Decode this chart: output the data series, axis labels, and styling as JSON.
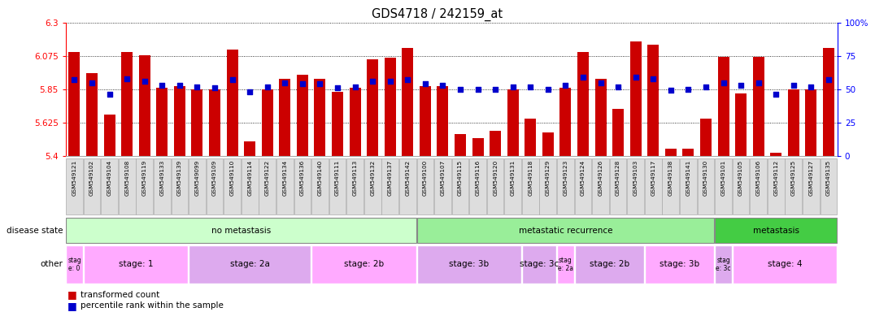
{
  "title": "GDS4718 / 242159_at",
  "samples": [
    "GSM549121",
    "GSM549102",
    "GSM549104",
    "GSM549108",
    "GSM549119",
    "GSM549133",
    "GSM549139",
    "GSM549099",
    "GSM549109",
    "GSM549110",
    "GSM549114",
    "GSM549122",
    "GSM549134",
    "GSM549136",
    "GSM549140",
    "GSM549111",
    "GSM549113",
    "GSM549132",
    "GSM549137",
    "GSM549142",
    "GSM549100",
    "GSM549107",
    "GSM549115",
    "GSM549116",
    "GSM549120",
    "GSM549131",
    "GSM549118",
    "GSM549129",
    "GSM549123",
    "GSM549124",
    "GSM549126",
    "GSM549128",
    "GSM549103",
    "GSM549117",
    "GSM549138",
    "GSM549141",
    "GSM549130",
    "GSM549101",
    "GSM549105",
    "GSM549106",
    "GSM549112",
    "GSM549125",
    "GSM549127",
    "GSM549135"
  ],
  "bar_values": [
    6.1,
    5.96,
    5.68,
    6.1,
    6.08,
    5.86,
    5.87,
    5.85,
    5.85,
    6.12,
    5.5,
    5.85,
    5.92,
    5.95,
    5.92,
    5.83,
    5.86,
    6.05,
    6.06,
    6.13,
    5.87,
    5.87,
    5.55,
    5.52,
    5.57,
    5.85,
    5.65,
    5.56,
    5.86,
    6.1,
    5.92,
    5.72,
    6.17,
    6.15,
    5.45,
    5.45,
    5.65,
    6.07,
    5.82,
    6.07,
    5.42,
    5.85,
    5.85,
    6.13
  ],
  "percentile_values": [
    57,
    55,
    46,
    58,
    56,
    53,
    53,
    52,
    51,
    57,
    48,
    52,
    55,
    54,
    54,
    51,
    52,
    56,
    56,
    57,
    54,
    53,
    50,
    50,
    50,
    52,
    52,
    50,
    53,
    59,
    55,
    52,
    59,
    58,
    49,
    50,
    52,
    55,
    53,
    55,
    46,
    53,
    52,
    57
  ],
  "y_min": 5.4,
  "y_max": 6.3,
  "y_ticks": [
    5.4,
    5.625,
    5.85,
    6.075,
    6.3
  ],
  "y_tick_labels": [
    "5.4",
    "5.625",
    "5.85",
    "6.075",
    "6.3"
  ],
  "bar_color": "#cc0000",
  "percentile_color": "#0000cc",
  "right_y_ticks": [
    0,
    25,
    50,
    75,
    100
  ],
  "right_y_labels": [
    "0",
    "25",
    "50",
    "75",
    "100%"
  ],
  "disease_state_groups": [
    {
      "label": "no metastasis",
      "start": 0,
      "end": 19,
      "color": "#ccffcc"
    },
    {
      "label": "metastatic recurrence",
      "start": 20,
      "end": 36,
      "color": "#99ee99"
    },
    {
      "label": "metastasis",
      "start": 37,
      "end": 43,
      "color": "#44cc44"
    }
  ],
  "other_groups": [
    {
      "label": "stag\ne: 0",
      "start": 0,
      "end": 0,
      "color": "#ffaaff"
    },
    {
      "label": "stage: 1",
      "start": 1,
      "end": 6,
      "color": "#ffaaff"
    },
    {
      "label": "stage: 2a",
      "start": 7,
      "end": 13,
      "color": "#ddaaee"
    },
    {
      "label": "stage: 2b",
      "start": 14,
      "end": 19,
      "color": "#ffaaff"
    },
    {
      "label": "stage: 3b",
      "start": 20,
      "end": 25,
      "color": "#ddaaee"
    },
    {
      "label": "stage: 3c",
      "start": 26,
      "end": 27,
      "color": "#ddaaee"
    },
    {
      "label": "stag\ne: 2a",
      "start": 28,
      "end": 28,
      "color": "#ffaaff"
    },
    {
      "label": "stage: 2b",
      "start": 29,
      "end": 32,
      "color": "#ddaaee"
    },
    {
      "label": "stage: 3b",
      "start": 33,
      "end": 36,
      "color": "#ffaaff"
    },
    {
      "label": "stag\ne: 3c",
      "start": 37,
      "end": 37,
      "color": "#ddaaee"
    },
    {
      "label": "stage: 4",
      "start": 38,
      "end": 43,
      "color": "#ffaaff"
    }
  ],
  "legend_items": [
    {
      "label": "transformed count",
      "color": "#cc0000"
    },
    {
      "label": "percentile rank within the sample",
      "color": "#0000cc"
    }
  ]
}
